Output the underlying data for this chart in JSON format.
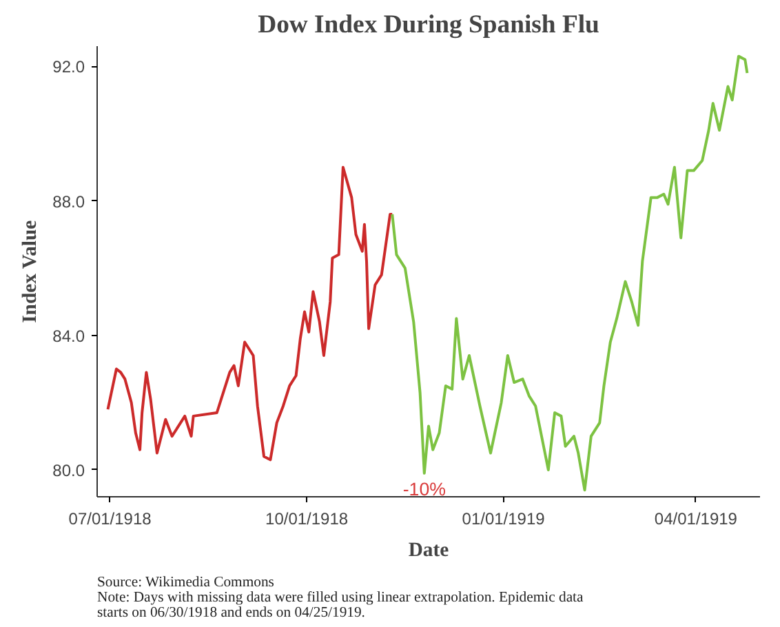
{
  "chart_data": {
    "type": "line",
    "title": "Dow Index During Spanish Flu",
    "xlabel": "Date",
    "ylabel": "Index Value",
    "xlim": [
      "1918-06-25",
      "1919-05-01"
    ],
    "ylim": [
      79.2,
      92.6
    ],
    "xticks": [
      {
        "value": "1918-07-01",
        "label": "07/01/1918"
      },
      {
        "value": "1918-10-01",
        "label": "10/01/1918"
      },
      {
        "value": "1919-01-01",
        "label": "01/01/1919"
      },
      {
        "value": "1919-04-01",
        "label": "04/01/1919"
      }
    ],
    "yticks": [
      {
        "value": 80,
        "label": "80.0"
      },
      {
        "value": 84,
        "label": "84.0"
      },
      {
        "value": 88,
        "label": "88.0"
      },
      {
        "value": 92,
        "label": "92.0"
      }
    ],
    "grid": false,
    "line_style": "solid",
    "series": [
      {
        "color": "#cc2a2a",
        "x": [
          "1918-06-30",
          "1918-07-04",
          "1918-07-06",
          "1918-07-08",
          "1918-07-11",
          "1918-07-13",
          "1918-07-15",
          "1918-07-16",
          "1918-07-18",
          "1918-07-20",
          "1918-07-23",
          "1918-07-27",
          "1918-07-30",
          "1918-08-05",
          "1918-08-08",
          "1918-08-09",
          "1918-08-20",
          "1918-08-22",
          "1918-08-26",
          "1918-08-28",
          "1918-08-30",
          "1918-09-02",
          "1918-09-06",
          "1918-09-08",
          "1918-09-11",
          "1918-09-14",
          "1918-09-17",
          "1918-09-20",
          "1918-09-23",
          "1918-09-26",
          "1918-09-28",
          "1918-09-30",
          "1918-10-02",
          "1918-10-04",
          "1918-10-07",
          "1918-10-09",
          "1918-10-12",
          "1918-10-13",
          "1918-10-16",
          "1918-10-18",
          "1918-10-22",
          "1918-10-24",
          "1918-10-27",
          "1918-10-28",
          "1918-10-29",
          "1918-10-30",
          "1918-11-02",
          "1918-11-05",
          "1918-11-09",
          "1918-11-10"
        ],
        "values": [
          81.8,
          83.0,
          82.9,
          82.7,
          82.0,
          81.1,
          80.6,
          81.7,
          82.9,
          82.1,
          80.5,
          81.5,
          81.0,
          81.6,
          81.0,
          81.6,
          81.7,
          82.1,
          82.9,
          83.1,
          82.5,
          83.8,
          83.4,
          81.9,
          80.4,
          80.3,
          81.4,
          81.9,
          82.5,
          82.8,
          83.9,
          84.7,
          84.1,
          85.3,
          84.4,
          83.4,
          85.0,
          86.3,
          86.4,
          89.0,
          88.1,
          87.0,
          86.5,
          87.3,
          86.2,
          84.2,
          85.5,
          85.8,
          87.6,
          87.6
        ]
      },
      {
        "color": "#7dc242",
        "x": [
          "1918-11-10",
          "1918-11-12",
          "1918-11-16",
          "1918-11-20",
          "1918-11-23",
          "1918-11-25",
          "1918-11-27",
          "1918-11-29",
          "1918-12-02",
          "1918-12-05",
          "1918-12-08",
          "1918-12-10",
          "1918-12-13",
          "1918-12-16",
          "1918-12-21",
          "1918-12-26",
          "1918-12-28",
          "1918-12-31",
          "1919-01-03",
          "1919-01-06",
          "1919-01-10",
          "1919-01-13",
          "1919-01-16",
          "1919-01-22",
          "1919-01-25",
          "1919-01-28",
          "1919-01-30",
          "1919-02-03",
          "1919-02-05",
          "1919-02-08",
          "1919-02-11",
          "1919-02-15",
          "1919-02-17",
          "1919-02-20",
          "1919-02-23",
          "1919-02-27",
          "1919-03-02",
          "1919-03-05",
          "1919-03-07",
          "1919-03-11",
          "1919-03-14",
          "1919-03-17",
          "1919-03-19",
          "1919-03-22",
          "1919-03-25",
          "1919-03-28",
          "1919-03-31",
          "1919-04-04",
          "1919-04-07",
          "1919-04-09",
          "1919-04-12",
          "1919-04-16",
          "1919-04-18",
          "1919-04-21",
          "1919-04-24",
          "1919-04-25"
        ],
        "values": [
          87.6,
          86.4,
          86.0,
          84.4,
          82.3,
          79.9,
          81.3,
          80.6,
          81.1,
          82.5,
          82.4,
          84.5,
          82.7,
          83.4,
          81.9,
          80.5,
          81.1,
          82.0,
          83.4,
          82.6,
          82.7,
          82.2,
          81.9,
          80.0,
          81.7,
          81.6,
          80.7,
          81.0,
          80.5,
          79.4,
          81.0,
          81.4,
          82.5,
          83.8,
          84.5,
          85.6,
          85.0,
          84.3,
          86.2,
          88.1,
          88.1,
          88.2,
          87.9,
          89.0,
          86.9,
          88.9,
          88.9,
          89.2,
          90.1,
          90.9,
          90.1,
          91.4,
          91.0,
          92.3,
          92.2,
          91.8
        ]
      }
    ],
    "annotations": [
      {
        "text": "-10%",
        "x": "1918-11-25",
        "y": 79.9
      },
      "Source: Wikimedia Commons",
      "Note: Days with missing data were filled using linear extrapolation. Epidemic data\nstarts on 06/30/1918 and ends on 04/25/1919."
    ]
  }
}
